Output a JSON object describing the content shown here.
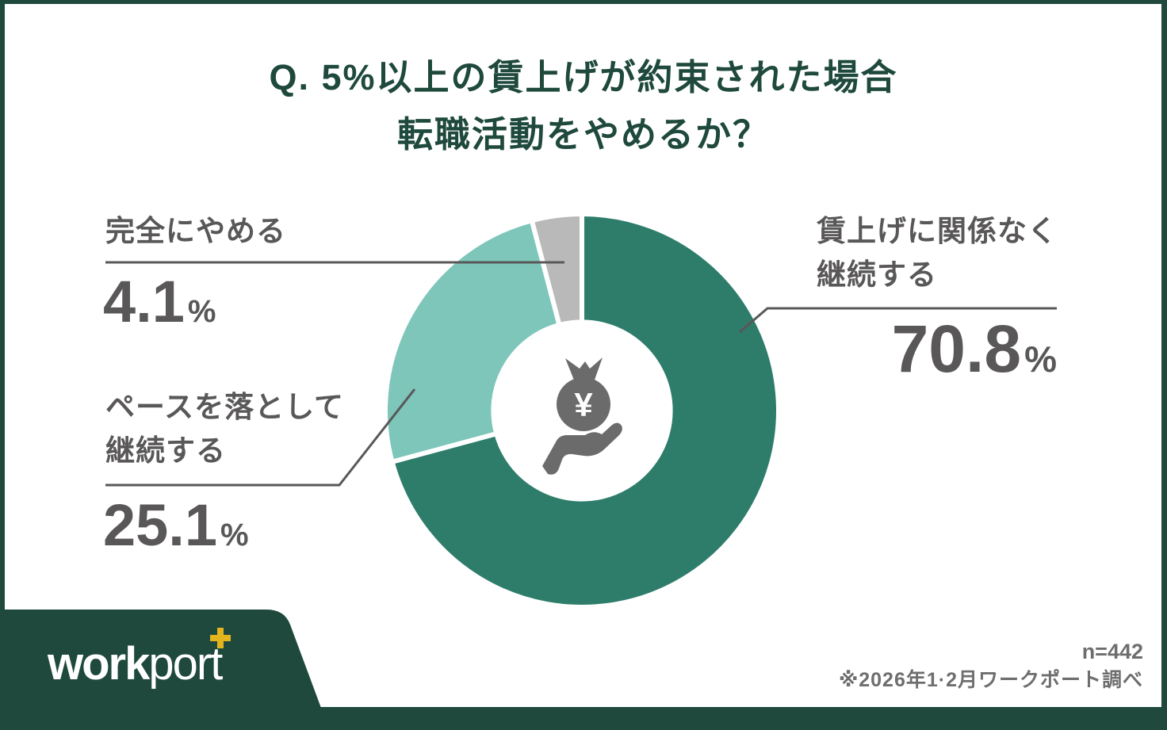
{
  "title": {
    "line1": "Q. 5%以上の賃上げが約束された場合",
    "line2": "転職活動をやめるか？"
  },
  "chart_data": {
    "type": "pie",
    "subtype": "donut",
    "unit": "%",
    "start_angle_deg": 0,
    "direction": "clockwise",
    "inner_radius_ratio": 0.45,
    "center_icon": "money-bag-in-hand",
    "segments": [
      {
        "label": "賃上げに関係なく継続する",
        "value": 70.8,
        "color": "#2e7d6b"
      },
      {
        "label": "ペースを落として継続する",
        "value": 25.1,
        "color": "#7ec6ba"
      },
      {
        "label": "完全にやめる",
        "value": 4.1,
        "color": "#b9b9b9"
      }
    ]
  },
  "callouts": {
    "stop_completely": {
      "label": "完全にやめる",
      "value": "4.1",
      "unit": "%"
    },
    "slow_down": {
      "label_line1": "ペースを落として",
      "label_line2": "継続する",
      "value": "25.1",
      "unit": "%"
    },
    "continue_regardless": {
      "label_line1": "賃上げに関係なく",
      "label_line2": "継続する",
      "value": "70.8",
      "unit": "%"
    }
  },
  "footer": {
    "logo_part_bold": "work",
    "logo_part_light": "por",
    "logo_part_t": "t",
    "sample_size": "n=442",
    "source_note": "※2026年1·2月ワークポート調べ"
  },
  "colors": {
    "brand_green": "#1e493c",
    "dark_teal": "#2e7d6b",
    "light_teal": "#7ec6ba",
    "slice_gray": "#b9b9b9",
    "text_gray": "#595757",
    "footer_text_gray": "#6e6e6e",
    "logo_plus_gold": "#e2b41e",
    "icon_gray": "#6b6b6b"
  }
}
